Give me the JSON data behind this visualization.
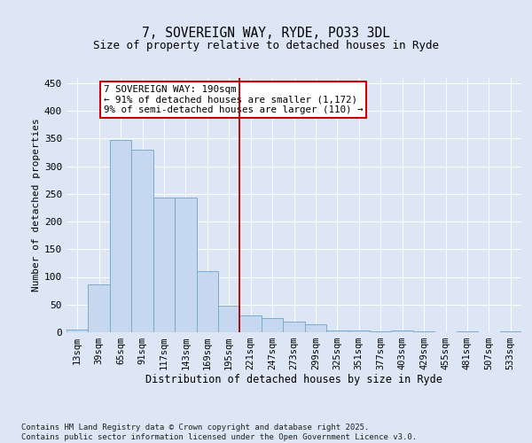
{
  "title_line1": "7, SOVEREIGN WAY, RYDE, PO33 3DL",
  "title_line2": "Size of property relative to detached houses in Ryde",
  "xlabel": "Distribution of detached houses by size in Ryde",
  "ylabel": "Number of detached properties",
  "categories": [
    "13sqm",
    "39sqm",
    "65sqm",
    "91sqm",
    "117sqm",
    "143sqm",
    "169sqm",
    "195sqm",
    "221sqm",
    "247sqm",
    "273sqm",
    "299sqm",
    "325sqm",
    "351sqm",
    "377sqm",
    "403sqm",
    "429sqm",
    "455sqm",
    "481sqm",
    "507sqm",
    "533sqm"
  ],
  "values": [
    5,
    87,
    347,
    330,
    243,
    243,
    110,
    48,
    30,
    25,
    20,
    14,
    4,
    3,
    2,
    3,
    1,
    0,
    1,
    0,
    1
  ],
  "bar_color": "#c5d8f0",
  "bar_edge_color": "#7aabcd",
  "vline_color": "#aa0000",
  "vline_idx": 7,
  "annotation_text": "7 SOVEREIGN WAY: 190sqm\n← 91% of detached houses are smaller (1,172)\n9% of semi-detached houses are larger (110) →",
  "annotation_box_facecolor": "#ffffff",
  "annotation_box_edgecolor": "#cc0000",
  "ylim": [
    0,
    460
  ],
  "yticks": [
    0,
    50,
    100,
    150,
    200,
    250,
    300,
    350,
    400,
    450
  ],
  "background_color": "#dce6f5",
  "footer_text": "Contains HM Land Registry data © Crown copyright and database right 2025.\nContains public sector information licensed under the Open Government Licence v3.0."
}
